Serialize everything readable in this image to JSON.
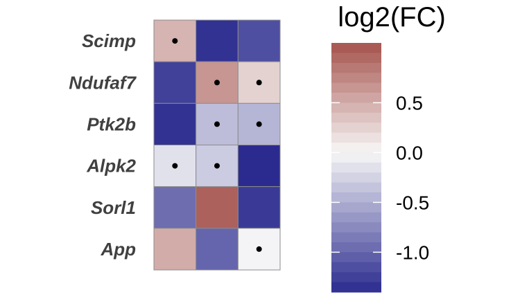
{
  "chart_data": {
    "type": "heatmap",
    "rows": [
      "Scimp",
      "Ndufaf7",
      "Ptk2b",
      "Alpk2",
      "Sorl1",
      "App"
    ],
    "columns": [
      "",
      "",
      ""
    ],
    "values": [
      [
        0.45,
        -1.35,
        -1.15
      ],
      [
        -1.25,
        0.65,
        0.25
      ],
      [
        -1.35,
        -0.4,
        -0.45
      ],
      [
        -0.15,
        -0.3,
        -1.4
      ],
      [
        -0.95,
        1.0,
        -1.3
      ],
      [
        0.5,
        -1.0,
        -0.02
      ]
    ],
    "significant": [
      [
        true,
        false,
        false
      ],
      [
        false,
        true,
        true
      ],
      [
        false,
        true,
        true
      ],
      [
        true,
        true,
        false
      ],
      [
        false,
        false,
        false
      ],
      [
        false,
        false,
        true
      ]
    ],
    "colorbar": {
      "title": "log2(FC)",
      "range": [
        -1.4,
        1.1
      ],
      "ticks": [
        0.5,
        0.0,
        -0.5,
        -1.0
      ],
      "tick_labels": [
        "0.5",
        "0.0",
        "-0.5",
        "-1.0"
      ],
      "low_color": "#2b2b8f",
      "mid_color": "#f7f7f7",
      "high_color": "#a5524c"
    }
  }
}
